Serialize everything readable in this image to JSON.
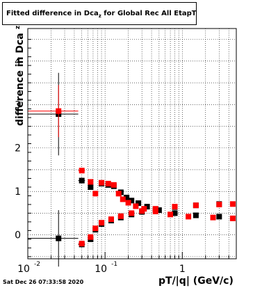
{
  "title": {
    "prefix": "Fitted difference in Dca",
    "subscript": "z",
    "suffix": " for Global Rec All EtapT"
  },
  "ylabel_main": "difference in Dca",
  "ylabel_sub": "z",
  "xlabel": "pT/|q| (GeV/c)",
  "timestamp": "Sat Dec 26 07:33:58 2020",
  "colors": {
    "series_black": "#000000",
    "series_red": "#ff0000",
    "grid": "#000000"
  },
  "chart_data": {
    "type": "scatter",
    "xscale": "log",
    "xlim": [
      0.01,
      5
    ],
    "ylim": [
      -0.55,
      4.75
    ],
    "grid": true,
    "xticks": [
      {
        "value": 0.01,
        "label": "10"
      },
      {
        "value": 0.1,
        "label": "10"
      },
      {
        "value": 1,
        "label": "1"
      }
    ],
    "yticks": [
      0,
      1,
      2,
      3,
      4
    ],
    "series": [
      {
        "color": "#000000",
        "marker": "square",
        "points": [
          {
            "x": 0.025,
            "y": 2.78,
            "yerr": 0.95,
            "xlo": 0.01,
            "xhi": 0.045
          },
          {
            "x": 0.05,
            "y": 1.25,
            "yerr": 0.05,
            "xlo": 0.045,
            "xhi": 0.055
          },
          {
            "x": 0.065,
            "y": 1.1,
            "yerr": 0.04
          },
          {
            "x": 0.09,
            "y": 1.18,
            "yerr": 0.04
          },
          {
            "x": 0.11,
            "y": 1.15,
            "yerr": 0.03
          },
          {
            "x": 0.13,
            "y": 1.12,
            "yerr": 0.03
          },
          {
            "x": 0.16,
            "y": 0.98,
            "yerr": 0.03
          },
          {
            "x": 0.19,
            "y": 0.86,
            "yerr": 0.02
          },
          {
            "x": 0.22,
            "y": 0.79,
            "yerr": 0.02
          },
          {
            "x": 0.27,
            "y": 0.73,
            "yerr": 0.02
          },
          {
            "x": 0.35,
            "y": 0.65,
            "yerr": 0.02
          },
          {
            "x": 0.5,
            "y": 0.57,
            "yerr": 0.02
          },
          {
            "x": 0.8,
            "y": 0.5,
            "yerr": 0.02
          },
          {
            "x": 1.5,
            "y": 0.45,
            "yerr": 0.02
          },
          {
            "x": 3.0,
            "y": 0.42,
            "yerr": 0.02
          },
          {
            "x": 0.025,
            "y": -0.08,
            "yerr": 0.65,
            "xlo": 0.01,
            "xhi": 0.045
          },
          {
            "x": 0.05,
            "y": -0.22,
            "yerr": 0.05,
            "xlo": 0.045,
            "xhi": 0.055
          },
          {
            "x": 0.065,
            "y": -0.1,
            "yerr": 0.04
          },
          {
            "x": 0.075,
            "y": 0.12,
            "yerr": 0.04
          },
          {
            "x": 0.09,
            "y": 0.25,
            "yerr": 0.03
          },
          {
            "x": 0.12,
            "y": 0.33,
            "yerr": 0.03
          },
          {
            "x": 0.16,
            "y": 0.4,
            "yerr": 0.02
          },
          {
            "x": 0.22,
            "y": 0.47,
            "yerr": 0.02
          },
          {
            "x": 0.3,
            "y": 0.53,
            "yerr": 0.02
          },
          {
            "x": 0.45,
            "y": 0.58,
            "yerr": 0.02
          },
          {
            "x": 0.8,
            "y": 0.64,
            "yerr": 0.02
          },
          {
            "x": 1.5,
            "y": 0.68,
            "yerr": 0.02
          },
          {
            "x": 3.0,
            "y": 0.71,
            "yerr": 0.02
          }
        ]
      },
      {
        "color": "#ff0000",
        "marker": "square",
        "points": [
          {
            "x": 0.025,
            "y": 2.85,
            "yerr": 0.6,
            "xlo": 0.01,
            "xhi": 0.045
          },
          {
            "x": 0.05,
            "y": 1.48,
            "yerr": 0.06,
            "xlo": 0.045,
            "xhi": 0.055
          },
          {
            "x": 0.065,
            "y": 1.22,
            "yerr": 0.05
          },
          {
            "x": 0.075,
            "y": 0.95,
            "yerr": 0.05
          },
          {
            "x": 0.09,
            "y": 1.2,
            "yerr": 0.04
          },
          {
            "x": 0.11,
            "y": 1.18,
            "yerr": 0.04
          },
          {
            "x": 0.13,
            "y": 1.15,
            "yerr": 0.03
          },
          {
            "x": 0.15,
            "y": 0.95,
            "yerr": 0.03
          },
          {
            "x": 0.17,
            "y": 0.82,
            "yerr": 0.03
          },
          {
            "x": 0.2,
            "y": 0.74,
            "yerr": 0.02
          },
          {
            "x": 0.25,
            "y": 0.66,
            "yerr": 0.02
          },
          {
            "x": 0.32,
            "y": 0.6,
            "yerr": 0.02
          },
          {
            "x": 0.45,
            "y": 0.54,
            "yerr": 0.02
          },
          {
            "x": 0.7,
            "y": 0.47,
            "yerr": 0.02
          },
          {
            "x": 1.2,
            "y": 0.42,
            "yerr": 0.02
          },
          {
            "x": 2.5,
            "y": 0.4,
            "yerr": 0.02
          },
          {
            "x": 4.5,
            "y": 0.38,
            "yerr": 0.02
          },
          {
            "x": 0.05,
            "y": -0.2,
            "yerr": 0.05,
            "xlo": 0.045,
            "xhi": 0.055
          },
          {
            "x": 0.065,
            "y": -0.05,
            "yerr": 0.04
          },
          {
            "x": 0.075,
            "y": 0.15,
            "yerr": 0.04
          },
          {
            "x": 0.09,
            "y": 0.28,
            "yerr": 0.03
          },
          {
            "x": 0.12,
            "y": 0.36,
            "yerr": 0.03
          },
          {
            "x": 0.16,
            "y": 0.43,
            "yerr": 0.02
          },
          {
            "x": 0.22,
            "y": 0.5,
            "yerr": 0.02
          },
          {
            "x": 0.3,
            "y": 0.55,
            "yerr": 0.02
          },
          {
            "x": 0.45,
            "y": 0.6,
            "yerr": 0.02
          },
          {
            "x": 0.8,
            "y": 0.65,
            "yerr": 0.02
          },
          {
            "x": 1.5,
            "y": 0.68,
            "yerr": 0.02
          },
          {
            "x": 3.0,
            "y": 0.7,
            "yerr": 0.02
          },
          {
            "x": 4.5,
            "y": 0.71,
            "yerr": 0.02
          }
        ]
      }
    ]
  }
}
